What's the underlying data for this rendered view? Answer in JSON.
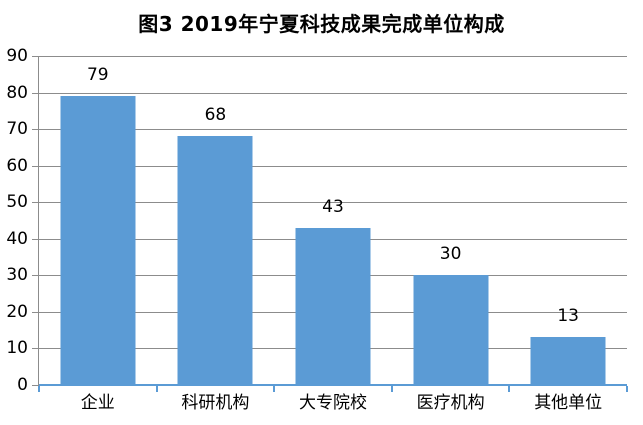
{
  "chart_data": {
    "type": "bar",
    "title": "图3 2019年宁夏科技成果完成单位构成",
    "categories": [
      "企业",
      "科研机构",
      "大专院校",
      "医疗机构",
      "其他单位"
    ],
    "values": [
      79,
      68,
      43,
      30,
      13
    ],
    "xlabel": "",
    "ylabel": "",
    "ylim": [
      0,
      90
    ],
    "ytick_step": 10,
    "ytick_labels": [
      "0",
      "10",
      "20",
      "30",
      "40",
      "50",
      "60",
      "70",
      "80",
      "90"
    ],
    "data_labels": [
      "79",
      "68",
      "43",
      "30",
      "13"
    ],
    "grid": true,
    "legend": "none",
    "colors": {
      "bar": "#5B9BD5",
      "x_axis_line": "#5B9BD5",
      "gridline": "#8C8C8C",
      "y_axis_line": "#8C8C8C",
      "text": "#000000",
      "background": "#FFFFFF"
    }
  }
}
